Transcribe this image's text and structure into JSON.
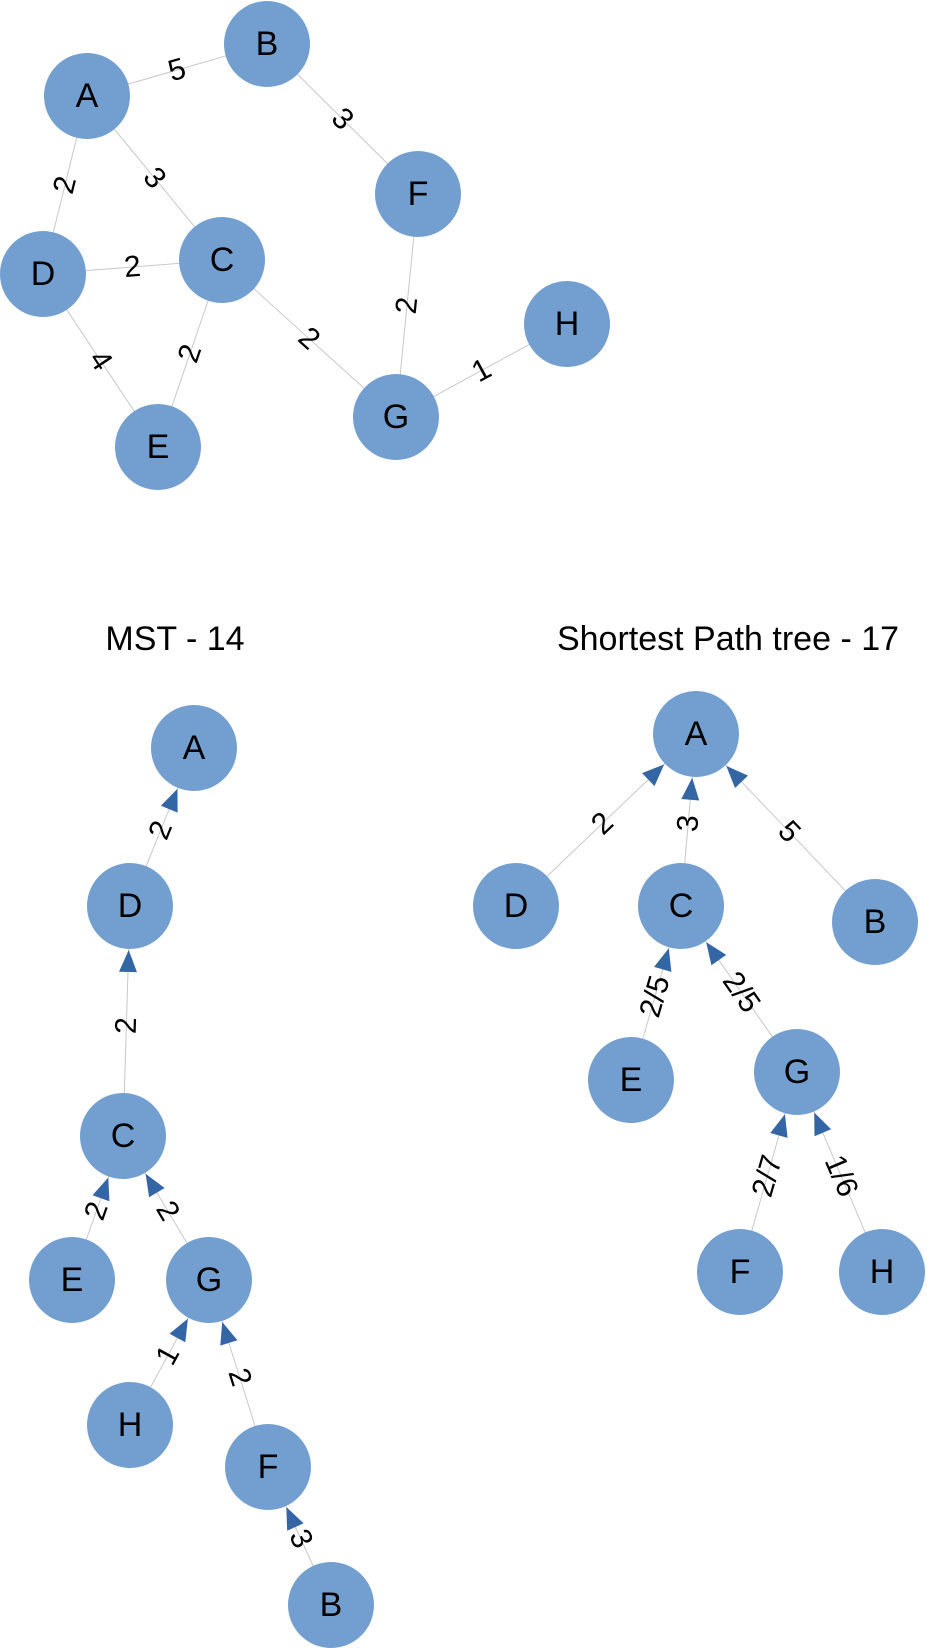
{
  "graph": {
    "nodes": [
      "A",
      "B",
      "C",
      "D",
      "E",
      "F",
      "G",
      "H"
    ],
    "edges": [
      {
        "from": "A",
        "to": "B",
        "weight": "5"
      },
      {
        "from": "A",
        "to": "D",
        "weight": "2"
      },
      {
        "from": "A",
        "to": "C",
        "weight": "3"
      },
      {
        "from": "B",
        "to": "F",
        "weight": "3"
      },
      {
        "from": "D",
        "to": "C",
        "weight": "2"
      },
      {
        "from": "D",
        "to": "E",
        "weight": "4"
      },
      {
        "from": "C",
        "to": "E",
        "weight": "2"
      },
      {
        "from": "C",
        "to": "G",
        "weight": "2"
      },
      {
        "from": "F",
        "to": "G",
        "weight": "2"
      },
      {
        "from": "G",
        "to": "H",
        "weight": "1"
      }
    ]
  },
  "mst": {
    "title": "MST - 14",
    "nodes": [
      "A",
      "D",
      "C",
      "E",
      "G",
      "H",
      "F",
      "B"
    ],
    "edges": [
      {
        "child": "D",
        "parent": "A",
        "label": "2"
      },
      {
        "child": "C",
        "parent": "D",
        "label": "2"
      },
      {
        "child": "E",
        "parent": "C",
        "label": "2"
      },
      {
        "child": "G",
        "parent": "C",
        "label": "2"
      },
      {
        "child": "H",
        "parent": "G",
        "label": "1"
      },
      {
        "child": "F",
        "parent": "G",
        "label": "2"
      },
      {
        "child": "B",
        "parent": "F",
        "label": "3"
      }
    ]
  },
  "spt": {
    "title": "Shortest Path tree - 17",
    "nodes": [
      "A",
      "D",
      "C",
      "B",
      "E",
      "G",
      "F",
      "H"
    ],
    "edges": [
      {
        "child": "D",
        "parent": "A",
        "label": "2"
      },
      {
        "child": "C",
        "parent": "A",
        "label": "3"
      },
      {
        "child": "B",
        "parent": "A",
        "label": "5"
      },
      {
        "child": "E",
        "parent": "C",
        "label": "2/5"
      },
      {
        "child": "G",
        "parent": "C",
        "label": "2/5"
      },
      {
        "child": "F",
        "parent": "G",
        "label": "2/7"
      },
      {
        "child": "H",
        "parent": "G",
        "label": "1/6"
      }
    ]
  }
}
